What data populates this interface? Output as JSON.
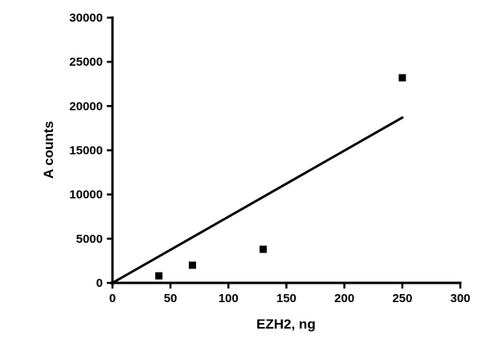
{
  "chart_data": {
    "type": "scatter",
    "title": "",
    "xlabel": "EZH2, ng",
    "ylabel": "A counts",
    "xlim": [
      0,
      300
    ],
    "ylim": [
      0,
      30000
    ],
    "xticks": [
      0,
      50,
      100,
      150,
      200,
      250,
      300
    ],
    "yticks": [
      0,
      5000,
      10000,
      15000,
      20000,
      25000,
      30000
    ],
    "grid": false,
    "legend": "none",
    "marker": "square",
    "marker_color": "#000000",
    "line_color": "#000000",
    "points": [
      {
        "x": 40,
        "y": 800
      },
      {
        "x": 69,
        "y": 2000
      },
      {
        "x": 130,
        "y": 3800
      },
      {
        "x": 250,
        "y": 23200
      }
    ],
    "trendline": {
      "x1": 0,
      "y1": 0,
      "x2": 250,
      "y2": 18700
    }
  }
}
